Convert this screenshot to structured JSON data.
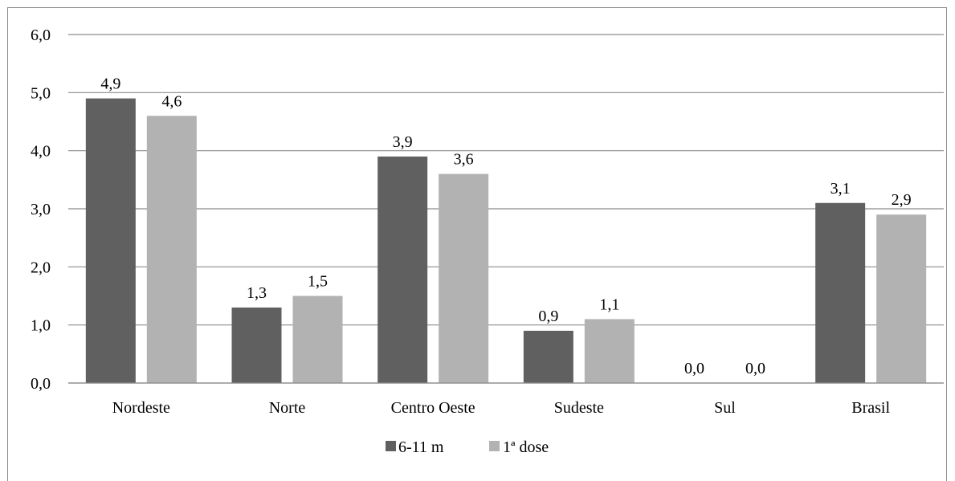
{
  "chart_data": {
    "type": "bar",
    "categories": [
      "Nordeste",
      "Norte",
      "Centro Oeste",
      "Sudeste",
      "Sul",
      "Brasil"
    ],
    "series": [
      {
        "name": "6-11 m",
        "values": [
          4.9,
          1.3,
          3.9,
          0.9,
          0.0,
          3.1
        ],
        "labels": [
          "4,9",
          "1,3",
          "3,9",
          "0,9",
          "0,0",
          "3,1"
        ],
        "color": "#606060"
      },
      {
        "name": "1ª dose",
        "values": [
          4.6,
          1.5,
          3.6,
          1.1,
          0.0,
          2.9
        ],
        "labels": [
          "4,6",
          "1,5",
          "3,6",
          "1,1",
          "0,0",
          "2,9"
        ],
        "color": "#b2b2b2"
      }
    ],
    "ylim": [
      0,
      6
    ],
    "yticks": [
      "0,0",
      "1,0",
      "2,0",
      "3,0",
      "4,0",
      "5,0",
      "6,0"
    ],
    "grid": true,
    "gridline_color": "#8c8c8c",
    "legend_position": "bottom",
    "title": "",
    "xlabel": "",
    "ylabel": ""
  }
}
